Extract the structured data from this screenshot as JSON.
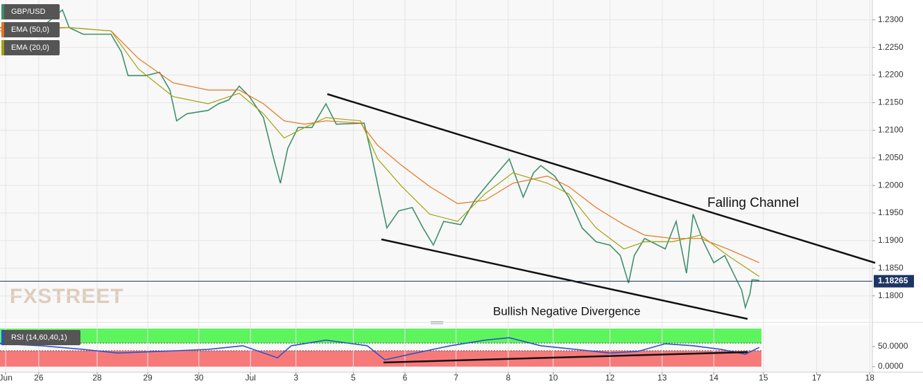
{
  "chart_data": [
    {
      "type": "line",
      "xlim": [
        -0.75,
        16.14
      ],
      "ylim": [
        1.1757,
        1.2336
      ],
      "grid": true,
      "yticks": [
        {
          "value": 1.23,
          "label": "1.2300"
        },
        {
          "value": 1.225,
          "label": "1.2250"
        },
        {
          "value": 1.22,
          "label": "1.2200"
        },
        {
          "value": 1.215,
          "label": "1.2150"
        },
        {
          "value": 1.21,
          "label": "1.2100"
        },
        {
          "value": 1.205,
          "label": "1.2050"
        },
        {
          "value": 1.2,
          "label": "1.2000"
        },
        {
          "value": 1.195,
          "label": "1.1950"
        },
        {
          "value": 1.19,
          "label": "1.1900"
        },
        {
          "value": 1.185,
          "label": "1.1850"
        },
        {
          "value": 1.18,
          "label": "1.1800"
        }
      ],
      "xticks": [
        {
          "value": -0.64,
          "label": "Jun"
        },
        {
          "value": 0,
          "label": "26"
        },
        {
          "value": 1.13,
          "label": "28"
        },
        {
          "value": 2.11,
          "label": "29"
        },
        {
          "value": 3.1,
          "label": "30"
        },
        {
          "value": 4.1,
          "label": "Jul"
        },
        {
          "value": 4.98,
          "label": "3"
        },
        {
          "value": 6.09,
          "label": "5"
        },
        {
          "value": 7.09,
          "label": "6"
        },
        {
          "value": 8.08,
          "label": "7"
        },
        {
          "value": 9.09,
          "label": "8"
        },
        {
          "value": 9.96,
          "label": "10"
        },
        {
          "value": 11.06,
          "label": "12"
        },
        {
          "value": 12.07,
          "label": "13"
        },
        {
          "value": 13.07,
          "label": "14"
        },
        {
          "value": 14.03,
          "label": "15"
        },
        {
          "value": 15.06,
          "label": "17"
        },
        {
          "value": 16.09,
          "label": "18"
        }
      ],
      "last_price": 1.18265,
      "annotations": [
        "Falling Channel",
        "Bullish Negative Divergence"
      ],
      "watermark": "FXSTREET",
      "series": [
        {
          "name": "GBP/USD",
          "color": "#3d8f6a",
          "x": [
            -0.75,
            -0.35,
            0.05,
            0.46,
            0.59,
            0.86,
            1.4,
            1.6,
            1.73,
            2.07,
            2.34,
            2.54,
            2.67,
            2.87,
            3.28,
            3.48,
            3.68,
            3.88,
            4.08,
            4.35,
            4.55,
            4.68,
            4.82,
            5.02,
            5.29,
            5.56,
            5.76,
            6.3,
            6.43,
            6.6,
            6.74,
            6.97,
            7.23,
            7.44,
            7.64,
            7.84,
            8.17,
            8.44,
            8.71,
            9.11,
            9.38,
            9.58,
            9.72,
            9.99,
            10.26,
            10.52,
            10.79,
            11.06,
            11.26,
            11.42,
            11.53,
            11.73,
            12.13,
            12.34,
            12.54,
            12.67,
            12.87,
            13.07,
            13.28,
            13.48,
            13.61,
            13.68,
            13.77,
            13.81,
            13.95
          ],
          "values": [
            1.2286,
            1.228,
            1.2286,
            1.2318,
            1.2286,
            1.2274,
            1.2274,
            1.2242,
            1.2199,
            1.2199,
            1.2205,
            1.2173,
            1.2117,
            1.213,
            1.2136,
            1.2148,
            1.2155,
            1.218,
            1.2161,
            1.2123,
            1.2048,
            1.2004,
            1.2067,
            1.2105,
            1.2105,
            1.2148,
            1.2111,
            1.2113,
            1.2061,
            1.1985,
            1.1923,
            1.1954,
            1.196,
            1.1923,
            1.1892,
            1.1935,
            1.1929,
            1.1973,
            1.2004,
            1.2048,
            1.1979,
            1.2023,
            1.2036,
            1.2017,
            1.1979,
            1.1923,
            1.1898,
            1.1892,
            1.1873,
            1.1823,
            1.1873,
            1.1904,
            1.1885,
            1.1935,
            1.1841,
            1.1948,
            1.1898,
            1.186,
            1.1873,
            1.1835,
            1.181,
            1.1779,
            1.1804,
            1.1829,
            1.1828
          ]
        },
        {
          "name": "EMA (50,0)",
          "color": "#e8711a",
          "x": [
            -0.75,
            0.59,
            1.4,
            1.93,
            2.6,
            3.28,
            3.88,
            4.35,
            4.75,
            5.15,
            5.56,
            6.23,
            6.56,
            7.03,
            7.57,
            8.11,
            8.64,
            9.18,
            9.85,
            10.26,
            10.79,
            11.33,
            11.73,
            12.27,
            12.81,
            13.34,
            13.95
          ],
          "values": [
            1.228,
            1.2286,
            1.228,
            1.223,
            1.2186,
            1.2173,
            1.2173,
            1.2148,
            1.2117,
            1.2111,
            1.2117,
            1.2113,
            1.2073,
            1.2036,
            1.1998,
            1.1967,
            1.1973,
            1.2004,
            1.2017,
            1.1998,
            1.196,
            1.1929,
            1.191,
            1.1904,
            1.1904,
            1.1885,
            1.186
          ]
        },
        {
          "name": "EMA (20,0)",
          "color": "#a3a10a",
          "x": [
            -0.75,
            0.59,
            1.4,
            1.93,
            2.6,
            3.28,
            3.88,
            4.35,
            4.75,
            5.15,
            5.56,
            6.23,
            6.56,
            7.03,
            7.57,
            8.11,
            8.64,
            9.18,
            9.85,
            10.26,
            10.79,
            11.33,
            11.73,
            12.27,
            12.81,
            13.34,
            13.95
          ],
          "values": [
            1.2286,
            1.2286,
            1.228,
            1.2211,
            1.2161,
            1.2148,
            1.2167,
            1.213,
            1.2086,
            1.2105,
            1.2123,
            1.2117,
            1.2048,
            1.1998,
            1.1948,
            1.1935,
            1.1985,
            1.2023,
            1.2004,
            1.1985,
            1.1923,
            1.1885,
            1.1898,
            1.1898,
            1.191,
            1.1873,
            1.1835
          ]
        }
      ]
    },
    {
      "type": "line",
      "xlim": [
        -0.75,
        16.14
      ],
      "ylim": [
        0,
        100
      ],
      "yticks": [
        {
          "value": 50,
          "label": "50.0000"
        },
        {
          "value": 0,
          "label": "0.0000"
        }
      ],
      "series": [
        {
          "name": "RSI (14,60,40,1)",
          "color": "#3050c8",
          "x": [
            -0.75,
            0.05,
            0.86,
            1.53,
            2.34,
            3.28,
            3.95,
            4.62,
            4.89,
            5.56,
            6.36,
            6.7,
            7.3,
            7.97,
            8.64,
            9.11,
            9.72,
            10.39,
            11.06,
            11.6,
            12.13,
            12.67,
            13.21,
            13.68,
            13.95
          ],
          "values": [
            57,
            52,
            43,
            34,
            38,
            43,
            52,
            22,
            52,
            66,
            52,
            17,
            34,
            52,
            66,
            72,
            52,
            43,
            34,
            38,
            57,
            52,
            43,
            31,
            48
          ]
        }
      ]
    }
  ]
}
